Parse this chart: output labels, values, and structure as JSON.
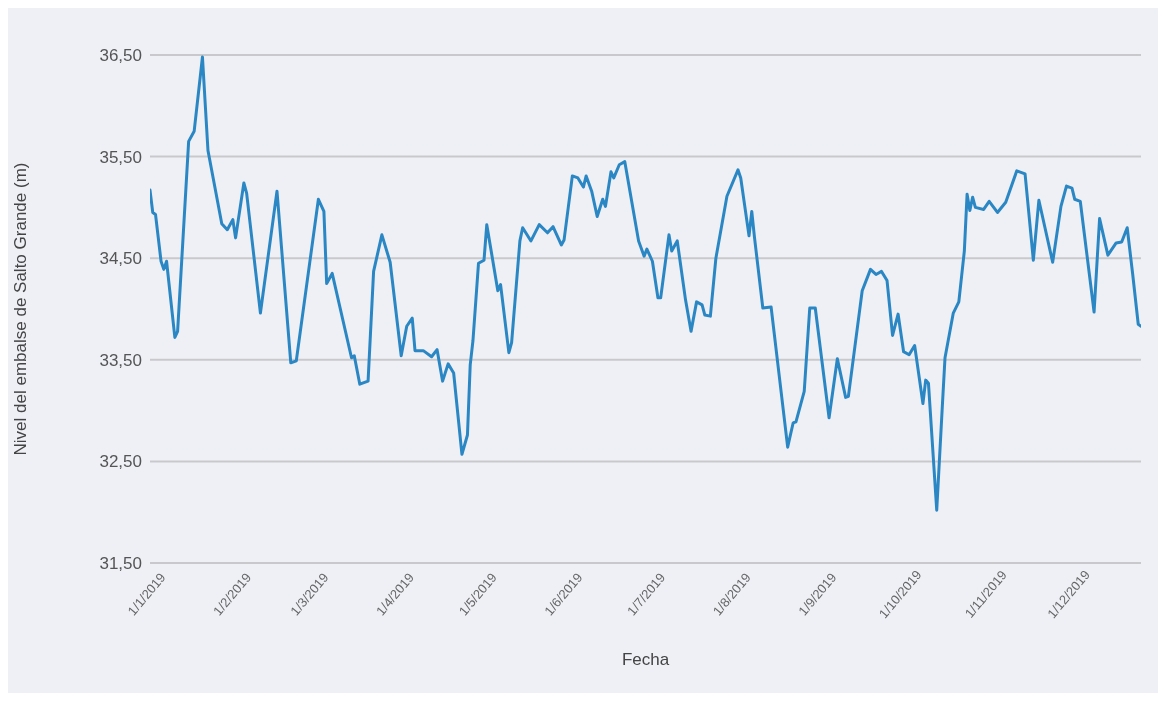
{
  "chart_data": {
    "type": "line",
    "xlabel": "Fecha",
    "ylabel": "Nivel del embalse de Salto Grande (m)",
    "x": [
      "2019-01-01",
      "2019-01-02",
      "2019-01-03",
      "2019-01-05",
      "2019-01-06",
      "2019-01-07",
      "2019-01-10",
      "2019-01-11",
      "2019-01-15",
      "2019-01-17",
      "2019-01-20",
      "2019-01-22",
      "2019-01-27",
      "2019-01-29",
      "2019-01-31",
      "2019-02-01",
      "2019-02-04",
      "2019-02-05",
      "2019-02-10",
      "2019-02-16",
      "2019-02-21",
      "2019-02-23",
      "2019-03-03",
      "2019-03-05",
      "2019-03-06",
      "2019-03-08",
      "2019-03-15",
      "2019-03-16",
      "2019-03-18",
      "2019-03-21",
      "2019-03-23",
      "2019-03-26",
      "2019-03-29",
      "2019-04-02",
      "2019-04-04",
      "2019-04-06",
      "2019-04-07",
      "2019-04-10",
      "2019-04-13",
      "2019-04-15",
      "2019-04-17",
      "2019-04-19",
      "2019-04-21",
      "2019-04-24",
      "2019-04-26",
      "2019-04-27",
      "2019-04-28",
      "2019-04-30",
      "2019-05-02",
      "2019-05-03",
      "2019-05-07",
      "2019-05-08",
      "2019-05-11",
      "2019-05-12",
      "2019-05-15",
      "2019-05-16",
      "2019-05-19",
      "2019-05-22",
      "2019-05-25",
      "2019-05-27",
      "2019-05-30",
      "2019-05-31",
      "2019-06-03",
      "2019-06-05",
      "2019-06-07",
      "2019-06-08",
      "2019-06-10",
      "2019-06-12",
      "2019-06-14",
      "2019-06-15",
      "2019-06-17",
      "2019-06-18",
      "2019-06-20",
      "2019-06-22",
      "2019-06-27",
      "2019-06-29",
      "2019-06-30",
      "2019-07-02",
      "2019-07-04",
      "2019-07-05",
      "2019-07-08",
      "2019-07-09",
      "2019-07-11",
      "2019-07-14",
      "2019-07-16",
      "2019-07-18",
      "2019-07-20",
      "2019-07-21",
      "2019-07-23",
      "2019-07-25",
      "2019-07-29",
      "2019-08-02",
      "2019-08-03",
      "2019-08-06",
      "2019-08-07",
      "2019-08-08",
      "2019-08-11",
      "2019-08-14",
      "2019-08-17",
      "2019-08-20",
      "2019-08-22",
      "2019-08-23",
      "2019-08-26",
      "2019-08-28",
      "2019-08-30",
      "2019-09-04",
      "2019-09-07",
      "2019-09-10",
      "2019-09-11",
      "2019-09-16",
      "2019-09-19",
      "2019-09-21",
      "2019-09-23",
      "2019-09-25",
      "2019-09-27",
      "2019-09-29",
      "2019-10-01",
      "2019-10-03",
      "2019-10-05",
      "2019-10-08",
      "2019-10-09",
      "2019-10-10",
      "2019-10-13",
      "2019-10-15",
      "2019-10-16",
      "2019-10-19",
      "2019-10-21",
      "2019-10-23",
      "2019-10-24",
      "2019-10-25",
      "2019-10-26",
      "2019-10-27",
      "2019-10-30",
      "2019-11-01",
      "2019-11-04",
      "2019-11-07",
      "2019-11-11",
      "2019-11-14",
      "2019-11-17",
      "2019-11-19",
      "2019-11-24",
      "2019-11-27",
      "2019-11-29",
      "2019-12-01",
      "2019-12-02",
      "2019-12-04",
      "2019-12-09",
      "2019-12-11",
      "2019-12-14",
      "2019-12-17",
      "2019-12-19",
      "2019-12-21",
      "2019-12-23",
      "2019-12-25",
      "2019-12-26"
    ],
    "series": [
      {
        "color": "#2a87c4",
        "values": [
          35.17,
          34.95,
          34.93,
          34.47,
          34.39,
          34.47,
          33.72,
          33.78,
          35.65,
          35.75,
          36.48,
          35.56,
          34.84,
          34.78,
          34.88,
          34.7,
          35.24,
          35.14,
          33.96,
          35.16,
          33.47,
          33.49,
          35.08,
          34.96,
          34.25,
          34.35,
          33.52,
          33.54,
          33.26,
          33.29,
          34.37,
          34.73,
          34.46,
          33.54,
          33.83,
          33.91,
          33.59,
          33.59,
          33.53,
          33.6,
          33.29,
          33.46,
          33.37,
          32.57,
          32.76,
          33.45,
          33.69,
          34.45,
          34.48,
          34.83,
          34.18,
          34.24,
          33.57,
          33.67,
          34.67,
          34.8,
          34.67,
          34.83,
          34.75,
          34.81,
          34.63,
          34.68,
          35.31,
          35.29,
          35.2,
          35.31,
          35.16,
          34.91,
          35.08,
          35.01,
          35.35,
          35.29,
          35.42,
          35.45,
          34.67,
          34.52,
          34.59,
          34.47,
          34.11,
          34.11,
          34.73,
          34.57,
          34.67,
          34.09,
          33.78,
          34.07,
          34.04,
          33.94,
          33.93,
          34.5,
          35.11,
          35.37,
          35.29,
          34.72,
          34.96,
          34.7,
          34.01,
          34.02,
          33.33,
          32.64,
          32.88,
          32.89,
          33.19,
          34.01,
          34.01,
          32.93,
          33.51,
          33.13,
          33.14,
          34.18,
          34.39,
          34.34,
          34.37,
          34.28,
          33.74,
          33.95,
          33.58,
          33.55,
          33.64,
          33.07,
          33.3,
          33.27,
          32.02,
          33.03,
          33.52,
          33.96,
          34.07,
          34.57,
          35.13,
          34.97,
          35.1,
          35.0,
          34.98,
          35.06,
          34.95,
          35.05,
          35.36,
          35.33,
          34.48,
          35.07,
          34.46,
          35.01,
          35.21,
          35.19,
          35.08,
          35.06,
          33.97,
          34.89,
          34.53,
          34.65,
          34.66,
          34.8,
          34.34,
          33.85,
          33.83
        ]
      }
    ],
    "xlim": [
      "2019-01-01",
      "2019-12-26"
    ],
    "xticks": [
      {
        "value": "2019-01-01",
        "label": "1/1/2019"
      },
      {
        "value": "2019-02-01",
        "label": "1/2/2019"
      },
      {
        "value": "2019-03-01",
        "label": "1/3/2019"
      },
      {
        "value": "2019-04-01",
        "label": "1/4/2019"
      },
      {
        "value": "2019-05-01",
        "label": "1/5/2019"
      },
      {
        "value": "2019-06-01",
        "label": "1/6/2019"
      },
      {
        "value": "2019-07-01",
        "label": "1/7/2019"
      },
      {
        "value": "2019-08-01",
        "label": "1/8/2019"
      },
      {
        "value": "2019-09-01",
        "label": "1/9/2019"
      },
      {
        "value": "2019-10-01",
        "label": "1/10/2019"
      },
      {
        "value": "2019-11-01",
        "label": "1/11/2019"
      },
      {
        "value": "2019-12-01",
        "label": "1/12/2019"
      }
    ],
    "ylim": [
      31.5,
      36.5
    ],
    "yticks": [
      {
        "value": 31.5,
        "label": "31,50"
      },
      {
        "value": 32.5,
        "label": "32,50"
      },
      {
        "value": 33.5,
        "label": "33,50"
      },
      {
        "value": 34.5,
        "label": "34,50"
      },
      {
        "value": 35.5,
        "label": "35,50"
      },
      {
        "value": 36.5,
        "label": "36,50"
      }
    ],
    "grid": "y",
    "line_style": "solid"
  }
}
